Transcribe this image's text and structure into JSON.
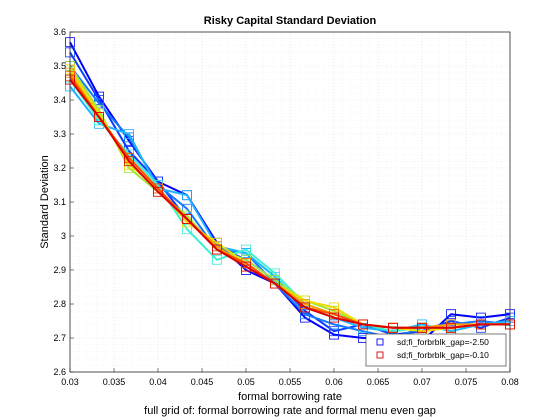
{
  "chart_data": {
    "type": "line",
    "title": "Risky Capital Standard Deviation",
    "xlabel": "formal borrowing rate",
    "ylabel": "Standard Deviation",
    "caption": "full grid of: formal borrowing rate and formal menu even gap",
    "xlim": [
      0.03,
      0.08
    ],
    "ylim": [
      2.6,
      3.6
    ],
    "xticks": [
      "0.03",
      "0.035",
      "0.04",
      "0.045",
      "0.05",
      "0.055",
      "0.06",
      "0.065",
      "0.07",
      "0.075",
      "0.08"
    ],
    "yticks": [
      "2.6",
      "2.7",
      "2.8",
      "2.9",
      "3",
      "3.1",
      "3.2",
      "3.3",
      "3.4",
      "3.5",
      "3.6"
    ],
    "grid": true,
    "legend_position": "bottom-right",
    "x": [
      0.03,
      0.0333,
      0.0367,
      0.04,
      0.0433,
      0.0467,
      0.05,
      0.0533,
      0.0567,
      0.06,
      0.0633,
      0.0667,
      0.07,
      0.0733,
      0.0767,
      0.08
    ],
    "series": [
      {
        "name": "sd;fi_forbrblk_gap=-2.50",
        "color": "#0000ff",
        "values": [
          3.57,
          3.41,
          3.28,
          3.16,
          3.12,
          2.98,
          2.9,
          2.86,
          2.76,
          2.71,
          2.7,
          2.7,
          2.69,
          2.77,
          2.76,
          2.77
        ]
      },
      {
        "color": "#0a3cff",
        "values": [
          3.54,
          3.4,
          3.25,
          3.16,
          3.05,
          2.97,
          2.93,
          2.87,
          2.78,
          2.72,
          2.74,
          2.71,
          2.72,
          2.75,
          2.73,
          2.76
        ]
      },
      {
        "color": "#1478ff",
        "values": [
          3.5,
          3.39,
          3.29,
          3.15,
          3.08,
          2.96,
          2.95,
          2.86,
          2.77,
          2.74,
          2.72,
          2.7,
          2.73,
          2.74,
          2.75,
          2.74
        ]
      },
      {
        "color": "#1eb4ff",
        "values": [
          3.44,
          3.33,
          3.3,
          3.14,
          3.12,
          2.97,
          2.95,
          2.88,
          2.79,
          2.76,
          2.73,
          2.72,
          2.74,
          2.72,
          2.74,
          2.75
        ]
      },
      {
        "color": "#3cf0d2",
        "values": [
          3.46,
          3.34,
          3.24,
          3.15,
          3.02,
          2.93,
          2.96,
          2.89,
          2.8,
          2.77,
          2.74,
          2.72,
          2.73,
          2.73,
          2.74,
          2.74
        ]
      },
      {
        "color": "#a0e63c",
        "values": [
          3.5,
          3.37,
          3.2,
          3.13,
          3.06,
          2.96,
          2.93,
          2.87,
          2.81,
          2.78,
          2.74,
          2.73,
          2.73,
          2.73,
          2.74,
          2.74
        ]
      },
      {
        "color": "#f0dc00",
        "values": [
          3.49,
          3.36,
          3.21,
          3.14,
          3.04,
          2.98,
          2.92,
          2.86,
          2.81,
          2.79,
          2.74,
          2.73,
          2.72,
          2.73,
          2.74,
          2.74
        ]
      },
      {
        "color": "#ffa000",
        "values": [
          3.48,
          3.35,
          3.23,
          3.14,
          3.05,
          2.97,
          2.91,
          2.86,
          2.8,
          2.77,
          2.74,
          2.73,
          2.73,
          2.74,
          2.74,
          2.74
        ]
      },
      {
        "color": "#ff5000",
        "values": [
          3.47,
          3.35,
          3.23,
          3.14,
          3.05,
          2.96,
          2.92,
          2.86,
          2.79,
          2.77,
          2.74,
          2.73,
          2.73,
          2.73,
          2.74,
          2.74
        ]
      },
      {
        "name": "sd;fi_forbrblk_gap=-0.10",
        "color": "#dc0000",
        "values": [
          3.46,
          3.35,
          3.22,
          3.13,
          3.05,
          2.96,
          2.91,
          2.86,
          2.79,
          2.76,
          2.74,
          2.73,
          2.73,
          2.73,
          2.74,
          2.74
        ]
      }
    ]
  }
}
